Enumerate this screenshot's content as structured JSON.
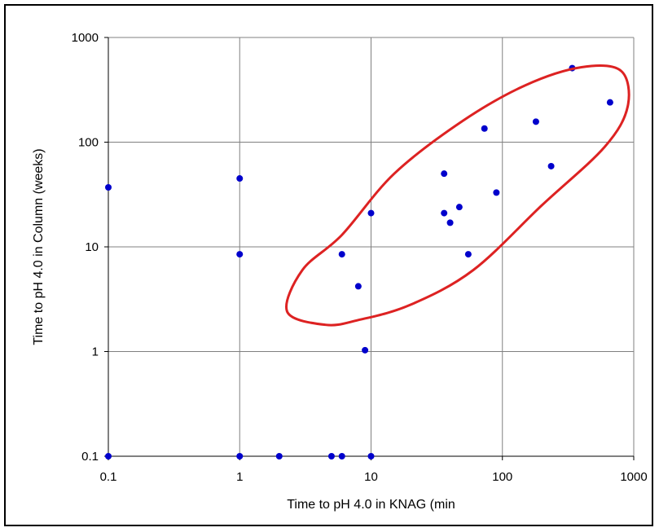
{
  "chart_data": {
    "type": "scatter",
    "title": "",
    "xlabel": "Time to pH 4.0 in KNAG (min",
    "ylabel": "Time to pH 4.0 in Column (weeks)",
    "xscale": "log",
    "yscale": "log",
    "xlim": [
      0.1,
      1000
    ],
    "ylim": [
      0.1,
      1000
    ],
    "xticks": [
      0.1,
      1,
      10,
      100,
      1000
    ],
    "xtick_labels": [
      "0.1",
      "1",
      "10",
      "100",
      "1000"
    ],
    "yticks": [
      0.1,
      1,
      10,
      100,
      1000
    ],
    "ytick_labels": [
      "0.1",
      "1",
      "10",
      "100",
      "1000"
    ],
    "grid": true,
    "legend": "none",
    "colors": {
      "points": "#0000cc",
      "ellipse": "#dd2222",
      "grid": "#808080",
      "axis": "#000000"
    },
    "series": [
      {
        "points": [
          {
            "x": 0.1,
            "y": 37
          },
          {
            "x": 0.1,
            "y": 0.1
          },
          {
            "x": 1,
            "y": 45
          },
          {
            "x": 1,
            "y": 8.5
          },
          {
            "x": 1,
            "y": 0.1
          },
          {
            "x": 2,
            "y": 0.1
          },
          {
            "x": 5,
            "y": 0.1
          },
          {
            "x": 6,
            "y": 0.1
          },
          {
            "x": 6,
            "y": 8.5
          },
          {
            "x": 8,
            "y": 4.2
          },
          {
            "x": 9,
            "y": 1.03
          },
          {
            "x": 10,
            "y": 21
          },
          {
            "x": 10,
            "y": 0.1
          },
          {
            "x": 36,
            "y": 50
          },
          {
            "x": 36,
            "y": 21
          },
          {
            "x": 40,
            "y": 17
          },
          {
            "x": 47,
            "y": 24
          },
          {
            "x": 55,
            "y": 8.5
          },
          {
            "x": 73,
            "y": 135
          },
          {
            "x": 90,
            "y": 33
          },
          {
            "x": 180,
            "y": 157
          },
          {
            "x": 235,
            "y": 59
          },
          {
            "x": 340,
            "y": 510
          },
          {
            "x": 660,
            "y": 240
          }
        ]
      }
    ],
    "annotations": [
      {
        "type": "ellipse",
        "description": "hand-drawn ellipse around clustered points",
        "path_data_coords": [
          [
            6.0,
            13
          ],
          [
            15,
            50
          ],
          [
            50,
            160
          ],
          [
            150,
            350
          ],
          [
            400,
            520
          ],
          [
            800,
            480
          ],
          [
            900,
            220
          ],
          [
            600,
            90
          ],
          [
            200,
            25
          ],
          [
            60,
            6
          ],
          [
            20,
            2.8
          ],
          [
            8,
            2.0
          ],
          [
            4.5,
            1.8
          ],
          [
            2.3,
            2.4
          ],
          [
            3.0,
            6.0
          ],
          [
            6.0,
            13
          ]
        ]
      }
    ]
  }
}
